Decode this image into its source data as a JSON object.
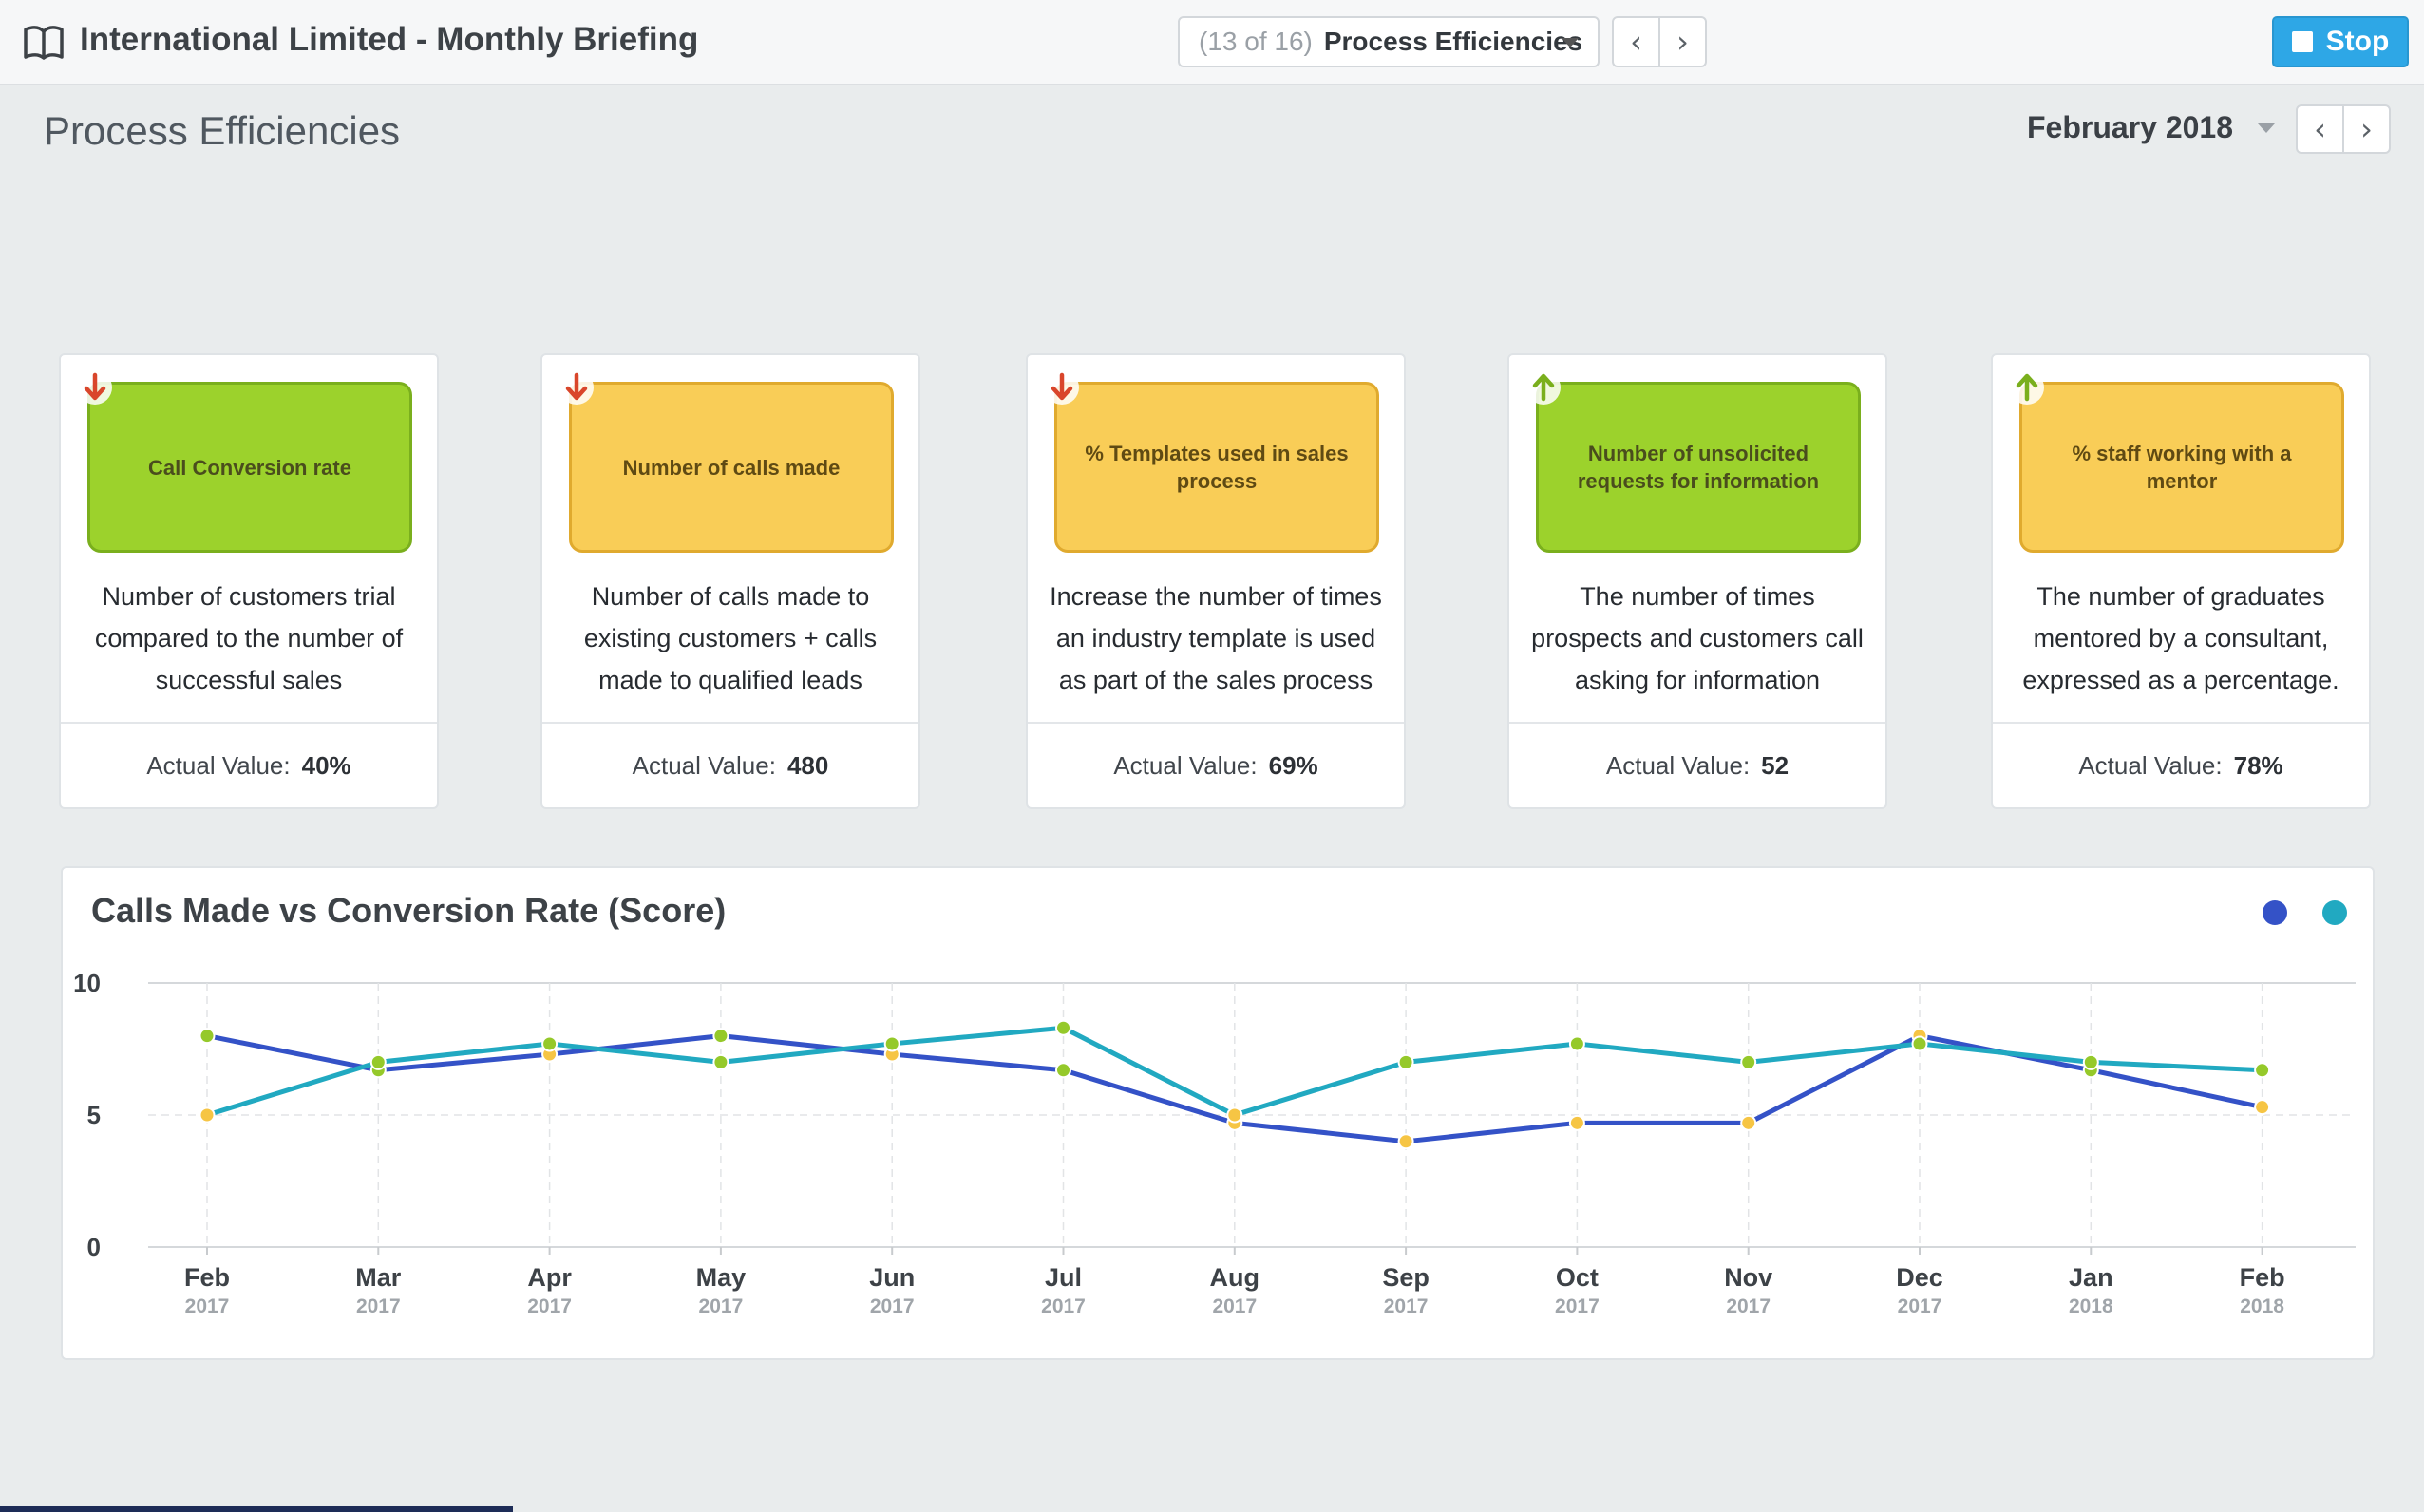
{
  "header": {
    "app_title": "International Limited - Monthly Briefing",
    "slide_count": "(13 of 16)",
    "slide_name": "Process Efficiencies",
    "prev_label": "‹",
    "next_label": "›",
    "stop_label": "Stop"
  },
  "page": {
    "title": "Process Efficiencies",
    "period": "February 2018",
    "prev_label": "‹",
    "next_label": "›"
  },
  "cards": [
    {
      "tile": "Call Conversion rate",
      "status": "green",
      "trend": "down",
      "description": "Number of customers trial compared to the number of successful sales",
      "value_label": "Actual Value:",
      "value": "40%"
    },
    {
      "tile": "Number of calls made",
      "status": "amber",
      "trend": "down",
      "description": "Number of calls made to existing customers + calls made to qualified leads",
      "value_label": "Actual Value:",
      "value": "480"
    },
    {
      "tile": "% Templates used in sales process",
      "status": "amber",
      "trend": "down",
      "description": "Increase the number of times an industry template is used as part of the sales process",
      "value_label": "Actual Value:",
      "value": "69%"
    },
    {
      "tile": "Number of unsolicited requests for information",
      "status": "green",
      "trend": "up",
      "description": "The number of times prospects and customers call asking for information",
      "value_label": "Actual Value:",
      "value": "52"
    },
    {
      "tile": "% staff working with a mentor",
      "status": "amber",
      "trend": "up",
      "description": "The number of graduates mentored by a consultant, expressed as a percentage.",
      "value_label": "Actual Value:",
      "value": "78%"
    }
  ],
  "colors": {
    "accent_blue": "#2ea7e6",
    "tile_green": "#9cd22c",
    "tile_amber": "#f9cd57",
    "trend_down": "#d9462b",
    "trend_up": "#7aaf1d",
    "series_1": "#3452c7",
    "series_2": "#21a9c1",
    "point_green": "#95c92a",
    "point_amber": "#f6c544"
  },
  "chart_data": {
    "type": "line",
    "title": "Calls Made vs Conversion Rate (Score)",
    "xlabel": "",
    "ylabel": "",
    "ylim": [
      0,
      10
    ],
    "yticks": [
      "0",
      "5",
      "10"
    ],
    "categories": [
      {
        "month": "Feb",
        "year": "2017"
      },
      {
        "month": "Mar",
        "year": "2017"
      },
      {
        "month": "Apr",
        "year": "2017"
      },
      {
        "month": "May",
        "year": "2017"
      },
      {
        "month": "Jun",
        "year": "2017"
      },
      {
        "month": "Jul",
        "year": "2017"
      },
      {
        "month": "Aug",
        "year": "2017"
      },
      {
        "month": "Sep",
        "year": "2017"
      },
      {
        "month": "Oct",
        "year": "2017"
      },
      {
        "month": "Nov",
        "year": "2017"
      },
      {
        "month": "Dec",
        "year": "2017"
      },
      {
        "month": "Jan",
        "year": "2018"
      },
      {
        "month": "Feb",
        "year": "2018"
      }
    ],
    "series": [
      {
        "color": "#3452c7",
        "values": [
          8.0,
          6.7,
          7.3,
          8.0,
          7.3,
          6.7,
          4.7,
          4.0,
          4.7,
          4.7,
          8.0,
          6.7,
          5.3
        ],
        "point_status": [
          "green",
          "green",
          "amber",
          "green",
          "amber",
          "green",
          "amber",
          "amber",
          "amber",
          "amber",
          "amber",
          "green",
          "amber"
        ]
      },
      {
        "color": "#21a9c1",
        "values": [
          5.0,
          7.0,
          7.7,
          7.0,
          7.7,
          8.3,
          5.0,
          7.0,
          7.7,
          7.0,
          7.7,
          7.0,
          6.7
        ],
        "point_status": [
          "amber",
          "green",
          "green",
          "green",
          "green",
          "green",
          "amber",
          "green",
          "green",
          "green",
          "green",
          "green",
          "green"
        ]
      }
    ],
    "grid": true,
    "legend": "top-right"
  }
}
